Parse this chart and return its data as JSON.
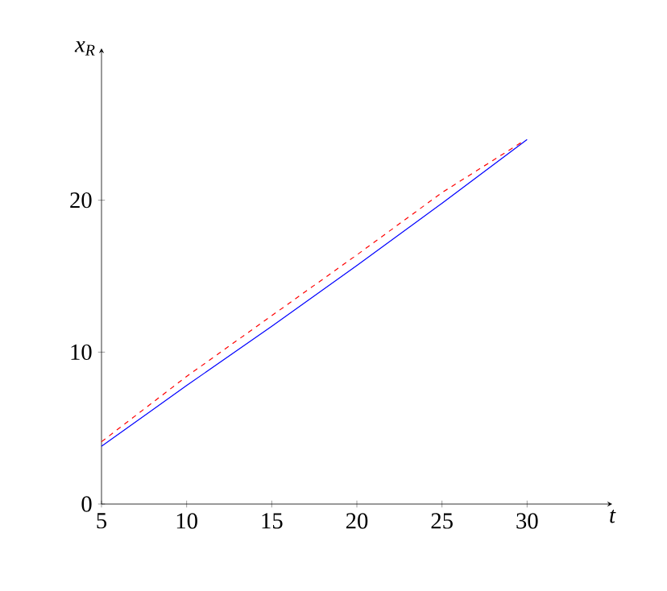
{
  "chart_data": {
    "type": "line",
    "xlabel": "t",
    "ylabel": "x$_{R}$",
    "x": [
      5,
      10,
      15,
      20,
      25,
      30
    ],
    "series": [
      {
        "color": "#0000ff",
        "line_style": "solid",
        "values": [
          3.8,
          7.8,
          11.7,
          15.7,
          19.8,
          24.0
        ]
      },
      {
        "color": "#ff0000",
        "line_style": "dashed",
        "x": [
          5,
          10,
          15,
          20,
          25,
          29.8
        ],
        "values": [
          4.1,
          8.4,
          12.4,
          16.4,
          20.5,
          23.9
        ]
      }
    ],
    "xlim": [
      5,
      35
    ],
    "ylim": [
      0,
      30
    ],
    "xticks": [
      5,
      10,
      15,
      20,
      25,
      30
    ],
    "yticks": [
      0,
      10,
      20
    ],
    "marker": "none"
  }
}
